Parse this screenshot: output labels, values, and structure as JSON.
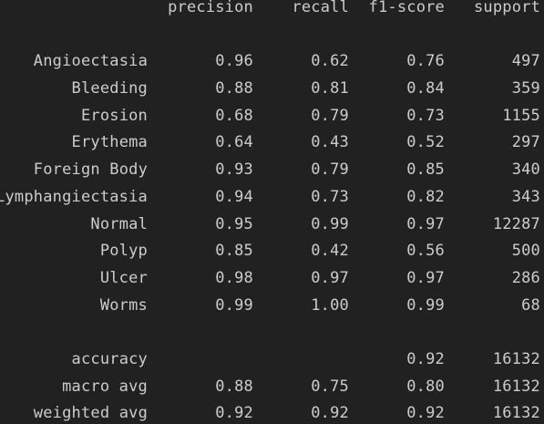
{
  "report": {
    "header": {
      "precision": "precision",
      "recall": "recall",
      "f1": "f1-score",
      "support": "support"
    },
    "classes": [
      {
        "label": "Angioectasia",
        "precision": "0.96",
        "recall": "0.62",
        "f1": "0.76",
        "support": "497"
      },
      {
        "label": "Bleeding",
        "precision": "0.88",
        "recall": "0.81",
        "f1": "0.84",
        "support": "359"
      },
      {
        "label": "Erosion",
        "precision": "0.68",
        "recall": "0.79",
        "f1": "0.73",
        "support": "1155"
      },
      {
        "label": "Erythema",
        "precision": "0.64",
        "recall": "0.43",
        "f1": "0.52",
        "support": "297"
      },
      {
        "label": "Foreign Body",
        "precision": "0.93",
        "recall": "0.79",
        "f1": "0.85",
        "support": "340"
      },
      {
        "label": "Lymphangiectasia",
        "precision": "0.94",
        "recall": "0.73",
        "f1": "0.82",
        "support": "343"
      },
      {
        "label": "Normal",
        "precision": "0.95",
        "recall": "0.99",
        "f1": "0.97",
        "support": "12287"
      },
      {
        "label": "Polyp",
        "precision": "0.85",
        "recall": "0.42",
        "f1": "0.56",
        "support": "500"
      },
      {
        "label": "Ulcer",
        "precision": "0.98",
        "recall": "0.97",
        "f1": "0.97",
        "support": "286"
      },
      {
        "label": "Worms",
        "precision": "0.99",
        "recall": "1.00",
        "f1": "0.99",
        "support": "68"
      }
    ],
    "summary": [
      {
        "label": "accuracy",
        "precision": "",
        "recall": "",
        "f1": "0.92",
        "support": "16132"
      },
      {
        "label": "macro avg",
        "precision": "0.88",
        "recall": "0.75",
        "f1": "0.80",
        "support": "16132"
      },
      {
        "label": "weighted avg",
        "precision": "0.92",
        "recall": "0.92",
        "f1": "0.92",
        "support": "16132"
      }
    ]
  }
}
